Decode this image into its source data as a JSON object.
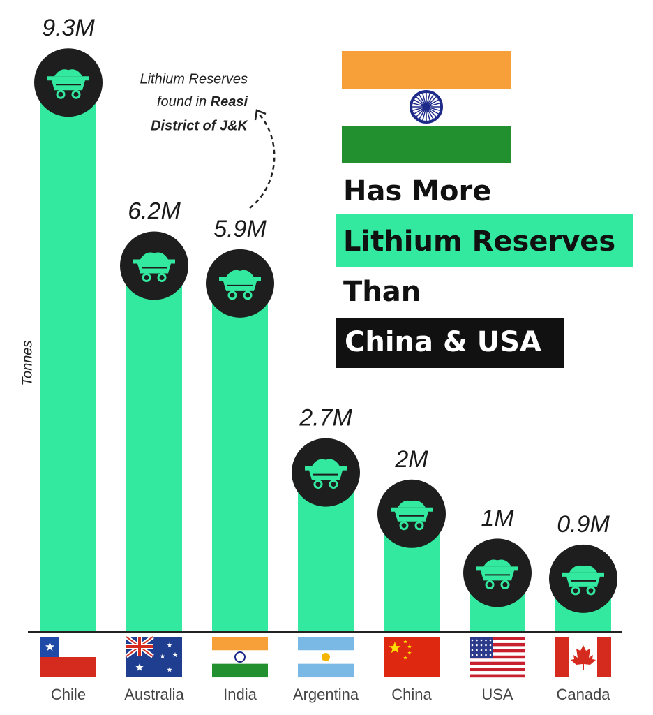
{
  "chart_data": {
    "type": "bar",
    "categories": [
      "Chile",
      "Australia",
      "India",
      "Argentina",
      "China",
      "USA",
      "Canada"
    ],
    "values": [
      9.3,
      6.2,
      5.9,
      2.7,
      2,
      1,
      0.9
    ],
    "value_labels": [
      "9.3M",
      "6.2M",
      "5.9M",
      "2.7M",
      "2M",
      "1M",
      "0.9M"
    ],
    "color": "#33e89f",
    "y_label": "Tonnes",
    "annotation": [
      "Lithium Reserves",
      "found in",
      "Reasi",
      "District of J&K"
    ],
    "headline": [
      "Has More",
      "Lithium Reserves",
      "Than",
      "China & USA"
    ]
  }
}
